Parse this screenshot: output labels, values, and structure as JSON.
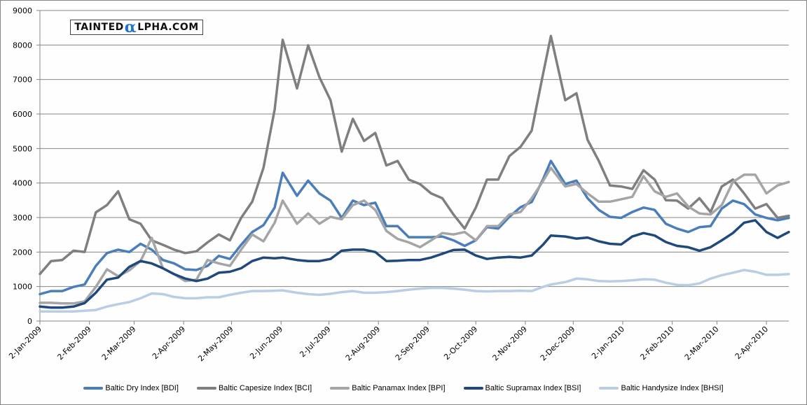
{
  "chart_data": {
    "type": "line",
    "title": "",
    "xlabel": "",
    "ylabel": "",
    "ylim": [
      0,
      9000
    ],
    "yticks": [
      "0",
      "1000",
      "2000",
      "3000",
      "4000",
      "5000",
      "6000",
      "7000",
      "8000",
      "9000"
    ],
    "xlim": [
      "2009-01-02",
      "2010-04-16"
    ],
    "xtick_dates": [
      "2009-01-02",
      "2009-02-02",
      "2009-03-02",
      "2009-04-02",
      "2009-05-02",
      "2009-06-02",
      "2009-07-02",
      "2009-08-02",
      "2009-09-02",
      "2009-10-02",
      "2009-11-02",
      "2009-12-02",
      "2010-01-02",
      "2010-02-02",
      "2010-03-02",
      "2010-04-02"
    ],
    "xtick_labels": [
      "2-Jan-2009",
      "2-Feb-2009",
      "2-Mar-2009",
      "2-Apr-2009",
      "2-May-2009",
      "2-Jun-2009",
      "2-Jul-2009",
      "2-Aug-2009",
      "2-Sep-2009",
      "2-Oct-2009",
      "2-Nov-2009",
      "2-Dec-2009",
      "2-Jan-2010",
      "2-Feb-2010",
      "2-Mar-2010",
      "2-Apr-2010"
    ],
    "grid": true,
    "legend_position": "bottom",
    "x": [
      "2009-01-02",
      "2009-01-09",
      "2009-01-16",
      "2009-01-23",
      "2009-01-30",
      "2009-02-06",
      "2009-02-13",
      "2009-02-20",
      "2009-02-27",
      "2009-03-06",
      "2009-03-13",
      "2009-03-20",
      "2009-03-27",
      "2009-04-03",
      "2009-04-10",
      "2009-04-17",
      "2009-04-24",
      "2009-05-01",
      "2009-05-08",
      "2009-05-15",
      "2009-05-22",
      "2009-05-29",
      "2009-06-03",
      "2009-06-12",
      "2009-06-19",
      "2009-06-26",
      "2009-07-03",
      "2009-07-10",
      "2009-07-17",
      "2009-07-24",
      "2009-07-31",
      "2009-08-07",
      "2009-08-14",
      "2009-08-21",
      "2009-08-28",
      "2009-09-04",
      "2009-09-11",
      "2009-09-18",
      "2009-09-25",
      "2009-10-02",
      "2009-10-09",
      "2009-10-16",
      "2009-10-23",
      "2009-10-30",
      "2009-11-06",
      "2009-11-13",
      "2009-11-18",
      "2009-11-27",
      "2009-12-04",
      "2009-12-11",
      "2009-12-18",
      "2009-12-25",
      "2010-01-01",
      "2010-01-08",
      "2010-01-15",
      "2010-01-22",
      "2010-01-29",
      "2010-02-05",
      "2010-02-12",
      "2010-02-19",
      "2010-02-26",
      "2010-03-05",
      "2010-03-12",
      "2010-03-19",
      "2010-03-26",
      "2010-04-02",
      "2010-04-09",
      "2010-04-16"
    ],
    "series": [
      {
        "name": "Baltic Dry Index [BDI]",
        "color": "#4a7ebb",
        "values": [
          780,
          870,
          870,
          990,
          1060,
          1600,
          1970,
          2070,
          2000,
          2240,
          2070,
          1770,
          1670,
          1500,
          1480,
          1600,
          1890,
          1800,
          2210,
          2580,
          2780,
          3290,
          4300,
          3630,
          4070,
          3700,
          3490,
          2990,
          3490,
          3360,
          3430,
          2750,
          2750,
          2430,
          2430,
          2430,
          2450,
          2340,
          2180,
          2340,
          2720,
          2680,
          3020,
          3300,
          3450,
          4100,
          4640,
          3970,
          4070,
          3560,
          3220,
          3020,
          2990,
          3160,
          3290,
          3220,
          2820,
          2680,
          2580,
          2720,
          2750,
          3260,
          3490,
          3390,
          3090,
          2990,
          2920,
          2990
        ]
      },
      {
        "name": "Baltic Capesize Index [BCI]",
        "color": "#7f7f7f",
        "values": [
          1365,
          1740,
          1770,
          2040,
          2000,
          3150,
          3360,
          3760,
          2950,
          2820,
          2340,
          2210,
          2070,
          1970,
          2020,
          2280,
          2510,
          2340,
          2990,
          3460,
          4440,
          6130,
          8150,
          6740,
          7990,
          7070,
          6400,
          4910,
          5860,
          5220,
          5450,
          4510,
          4640,
          4100,
          3970,
          3700,
          3560,
          3090,
          2680,
          3290,
          4100,
          4100,
          4780,
          5050,
          5520,
          7140,
          8260,
          6400,
          6600,
          5250,
          4640,
          3930,
          3900,
          3830,
          4370,
          4100,
          3500,
          3490,
          3260,
          3560,
          3160,
          3900,
          4100,
          3700,
          3260,
          3390,
          2990,
          3050
        ]
      },
      {
        "name": "Baltic Panamax Index [BPI]",
        "color": "#a5a5a5",
        "values": [
          530,
          530,
          510,
          510,
          570,
          990,
          1500,
          1300,
          1470,
          1740,
          2410,
          1530,
          1360,
          1160,
          1200,
          1770,
          1670,
          1600,
          2070,
          2510,
          2310,
          2850,
          3490,
          2820,
          3120,
          2820,
          3020,
          2950,
          3360,
          3490,
          3220,
          2610,
          2380,
          2280,
          2140,
          2340,
          2550,
          2510,
          2580,
          2340,
          2750,
          2750,
          3090,
          3160,
          3560,
          4050,
          4440,
          3900,
          3970,
          3700,
          3460,
          3460,
          3530,
          3600,
          4200,
          3760,
          3600,
          3700,
          3320,
          3120,
          3090,
          3360,
          4030,
          4240,
          4240,
          3700,
          3930,
          4030
        ]
      },
      {
        "name": "Baltic Supramax Index [BSI]",
        "color": "#1f497d",
        "values": [
          420,
          390,
          390,
          420,
          520,
          820,
          1200,
          1260,
          1570,
          1740,
          1670,
          1530,
          1360,
          1230,
          1160,
          1230,
          1400,
          1430,
          1530,
          1740,
          1840,
          1820,
          1840,
          1770,
          1740,
          1740,
          1800,
          2040,
          2070,
          2070,
          2000,
          1740,
          1750,
          1770,
          1770,
          1840,
          1950,
          2060,
          2070,
          1900,
          1800,
          1840,
          1860,
          1840,
          1900,
          2210,
          2480,
          2450,
          2390,
          2420,
          2310,
          2240,
          2220,
          2450,
          2550,
          2480,
          2290,
          2180,
          2140,
          2040,
          2140,
          2340,
          2550,
          2850,
          2920,
          2580,
          2410,
          2580
        ]
      },
      {
        "name": "Baltic Handysize Index [BHSI]",
        "color": "#b9cde5",
        "values": [
          280,
          280,
          280,
          280,
          300,
          320,
          420,
          490,
          550,
          660,
          800,
          780,
          700,
          660,
          660,
          690,
          690,
          760,
          820,
          870,
          870,
          880,
          890,
          820,
          780,
          760,
          790,
          840,
          870,
          820,
          820,
          840,
          870,
          910,
          940,
          960,
          960,
          940,
          910,
          870,
          860,
          870,
          870,
          880,
          870,
          990,
          1060,
          1130,
          1230,
          1210,
          1160,
          1150,
          1160,
          1180,
          1210,
          1200,
          1110,
          1050,
          1040,
          1090,
          1230,
          1330,
          1400,
          1480,
          1430,
          1340,
          1340,
          1360
        ]
      }
    ]
  },
  "watermark": {
    "prefix": "TAINTED",
    "alpha": "α",
    "suffix": "LPHA.COM"
  },
  "colors": {
    "gridline": "#868686",
    "background": "#fdfefd"
  }
}
